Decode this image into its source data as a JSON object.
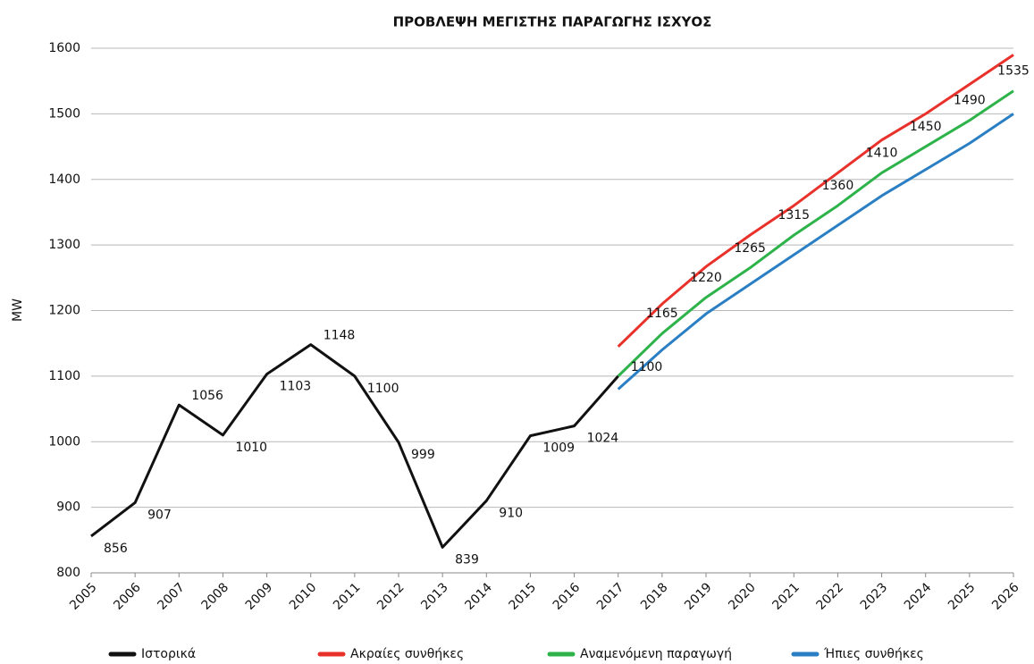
{
  "chart_data": {
    "type": "line",
    "title": "ΠΡΟΒΛΕΨΗ ΜΕΓΙΣΤΗΣ ΠΑΡΑΓΩΓΗΣ ΙΣΧΥΟΣ",
    "y_label": "MW",
    "categories": [
      "2005",
      "2006",
      "2007",
      "2008",
      "2009",
      "2010",
      "2011",
      "2012",
      "2013",
      "2014",
      "2015",
      "2016",
      "2017",
      "2018",
      "2019",
      "2020",
      "2021",
      "2022",
      "2023",
      "2024",
      "2025",
      "2026"
    ],
    "series": [
      {
        "name": "Ιστορικά",
        "color": "#111111",
        "values": [
          856,
          907,
          1056,
          1010,
          1103,
          1148,
          1100,
          999,
          839,
          910,
          1009,
          1024,
          1100,
          null,
          null,
          null,
          null,
          null,
          null,
          null,
          null,
          null
        ]
      },
      {
        "name": "Ακραίες συνθήκες",
        "color": "#e8312a",
        "values": [
          null,
          null,
          null,
          null,
          null,
          null,
          null,
          null,
          null,
          null,
          null,
          null,
          1145,
          1210,
          1267,
          1315,
          1360,
          1410,
          1460,
          1500,
          1545,
          1590
        ]
      },
      {
        "name": "Αναμενόμενη παραγωγή",
        "color": "#2db34a",
        "values": [
          null,
          null,
          null,
          null,
          null,
          null,
          null,
          null,
          null,
          null,
          null,
          null,
          1100,
          1165,
          1220,
          1265,
          1315,
          1360,
          1410,
          1450,
          1490,
          1535
        ]
      },
      {
        "name": "Ήπιες συνθήκες",
        "color": "#2a7fc4",
        "values": [
          null,
          null,
          null,
          null,
          null,
          null,
          null,
          null,
          null,
          null,
          null,
          null,
          1080,
          1140,
          1195,
          1240,
          1285,
          1330,
          1375,
          1415,
          1455,
          1500
        ]
      }
    ],
    "ylim": [
      800,
      1600
    ],
    "yticks": [
      800,
      900,
      1000,
      1100,
      1200,
      1300,
      1400,
      1500,
      1600
    ],
    "grid": true,
    "legend": "bottom"
  }
}
